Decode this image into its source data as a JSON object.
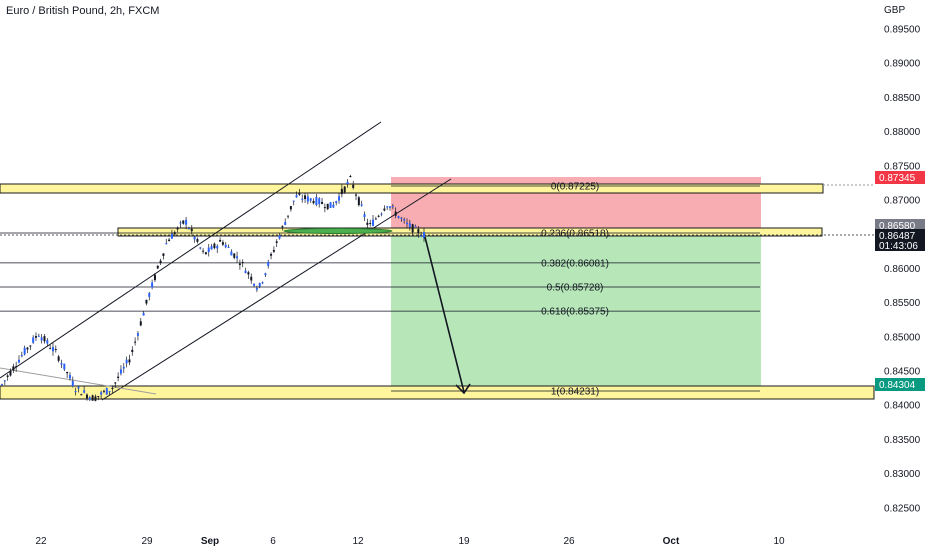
{
  "header": {
    "title": "Euro / British Pound, 2h, FXCM"
  },
  "price_axis": {
    "currency": "GBP",
    "ticks": [
      "0.89500",
      "0.89000",
      "0.88500",
      "0.88000",
      "0.87500",
      "0.87000",
      "0.86500",
      "0.86000",
      "0.85500",
      "0.85000",
      "0.84500",
      "0.84000",
      "0.83500",
      "0.83000",
      "0.82500"
    ]
  },
  "time_axis": {
    "ticks": [
      "22",
      "29",
      "Sep",
      "6",
      "12",
      "19",
      "26",
      "Oct",
      "10"
    ]
  },
  "price_tags": {
    "stop": {
      "value": "0.87345",
      "color": "#f23645"
    },
    "entry": {
      "value": "0.86580",
      "color": "#787b86"
    },
    "current": {
      "value": "0.86487",
      "countdown": "01:43:06",
      "color": "#131722"
    },
    "target": {
      "value": "0.84304",
      "color": "#089981"
    }
  },
  "fibonacci": [
    {
      "label": "0(0.87225)",
      "price": 0.87225
    },
    {
      "label": "0.236(0.86518)",
      "price": 0.86518
    },
    {
      "label": "0.382(0.86081)",
      "price": 0.86081
    },
    {
      "label": "0.5(0.85728)",
      "price": 0.85728
    },
    {
      "label": "0.618(0.85375)",
      "price": 0.85375
    },
    {
      "label": "1(0.84231)",
      "price": 0.84231
    }
  ],
  "chart_data": {
    "type": "line",
    "symbol": "EUR/GBP",
    "timeframe": "2h",
    "ylim": [
      0.8245,
      0.8975
    ],
    "grid": false,
    "series": [
      {
        "x": [
          "Aug 19",
          "Aug 20",
          "Aug 21",
          "Aug 22",
          "Aug 24",
          "Aug 26",
          "Aug 28",
          "Aug 29",
          "Aug 31",
          "Sep 1",
          "Sep 2",
          "Sep 3",
          "Sep 4",
          "Sep 5",
          "Sep 7",
          "Sep 8",
          "Sep 9",
          "Sep 10",
          "Sep 11",
          "Sep 12",
          "Sep 13",
          "Sep 14",
          "Sep 15",
          "Sep 16"
        ],
        "values": [
          0.843,
          0.847,
          0.8505,
          0.8475,
          0.8425,
          0.841,
          0.8425,
          0.847,
          0.856,
          0.864,
          0.867,
          0.862,
          0.864,
          0.861,
          0.857,
          0.864,
          0.8705,
          0.87,
          0.869,
          0.873,
          0.866,
          0.8695,
          0.8665,
          0.8649
        ]
      }
    ],
    "zones": [
      {
        "name": "stop",
        "from": 0.8658,
        "to": 0.87345,
        "color": "#f7a9ae"
      },
      {
        "name": "target",
        "from": 0.84304,
        "to": 0.8658,
        "color": "#b3e6b5"
      }
    ],
    "horizontal_levels": [
      0.872,
      0.8655,
      0.8423
    ]
  },
  "colors": {
    "candle": "#2962ff",
    "zone_band": "#fff59d",
    "zone_band_border": "#1a1a1a",
    "stop_zone": "#f7a9ae",
    "target_zone": "#b3e6b5",
    "ellipse": "#4caf50"
  }
}
